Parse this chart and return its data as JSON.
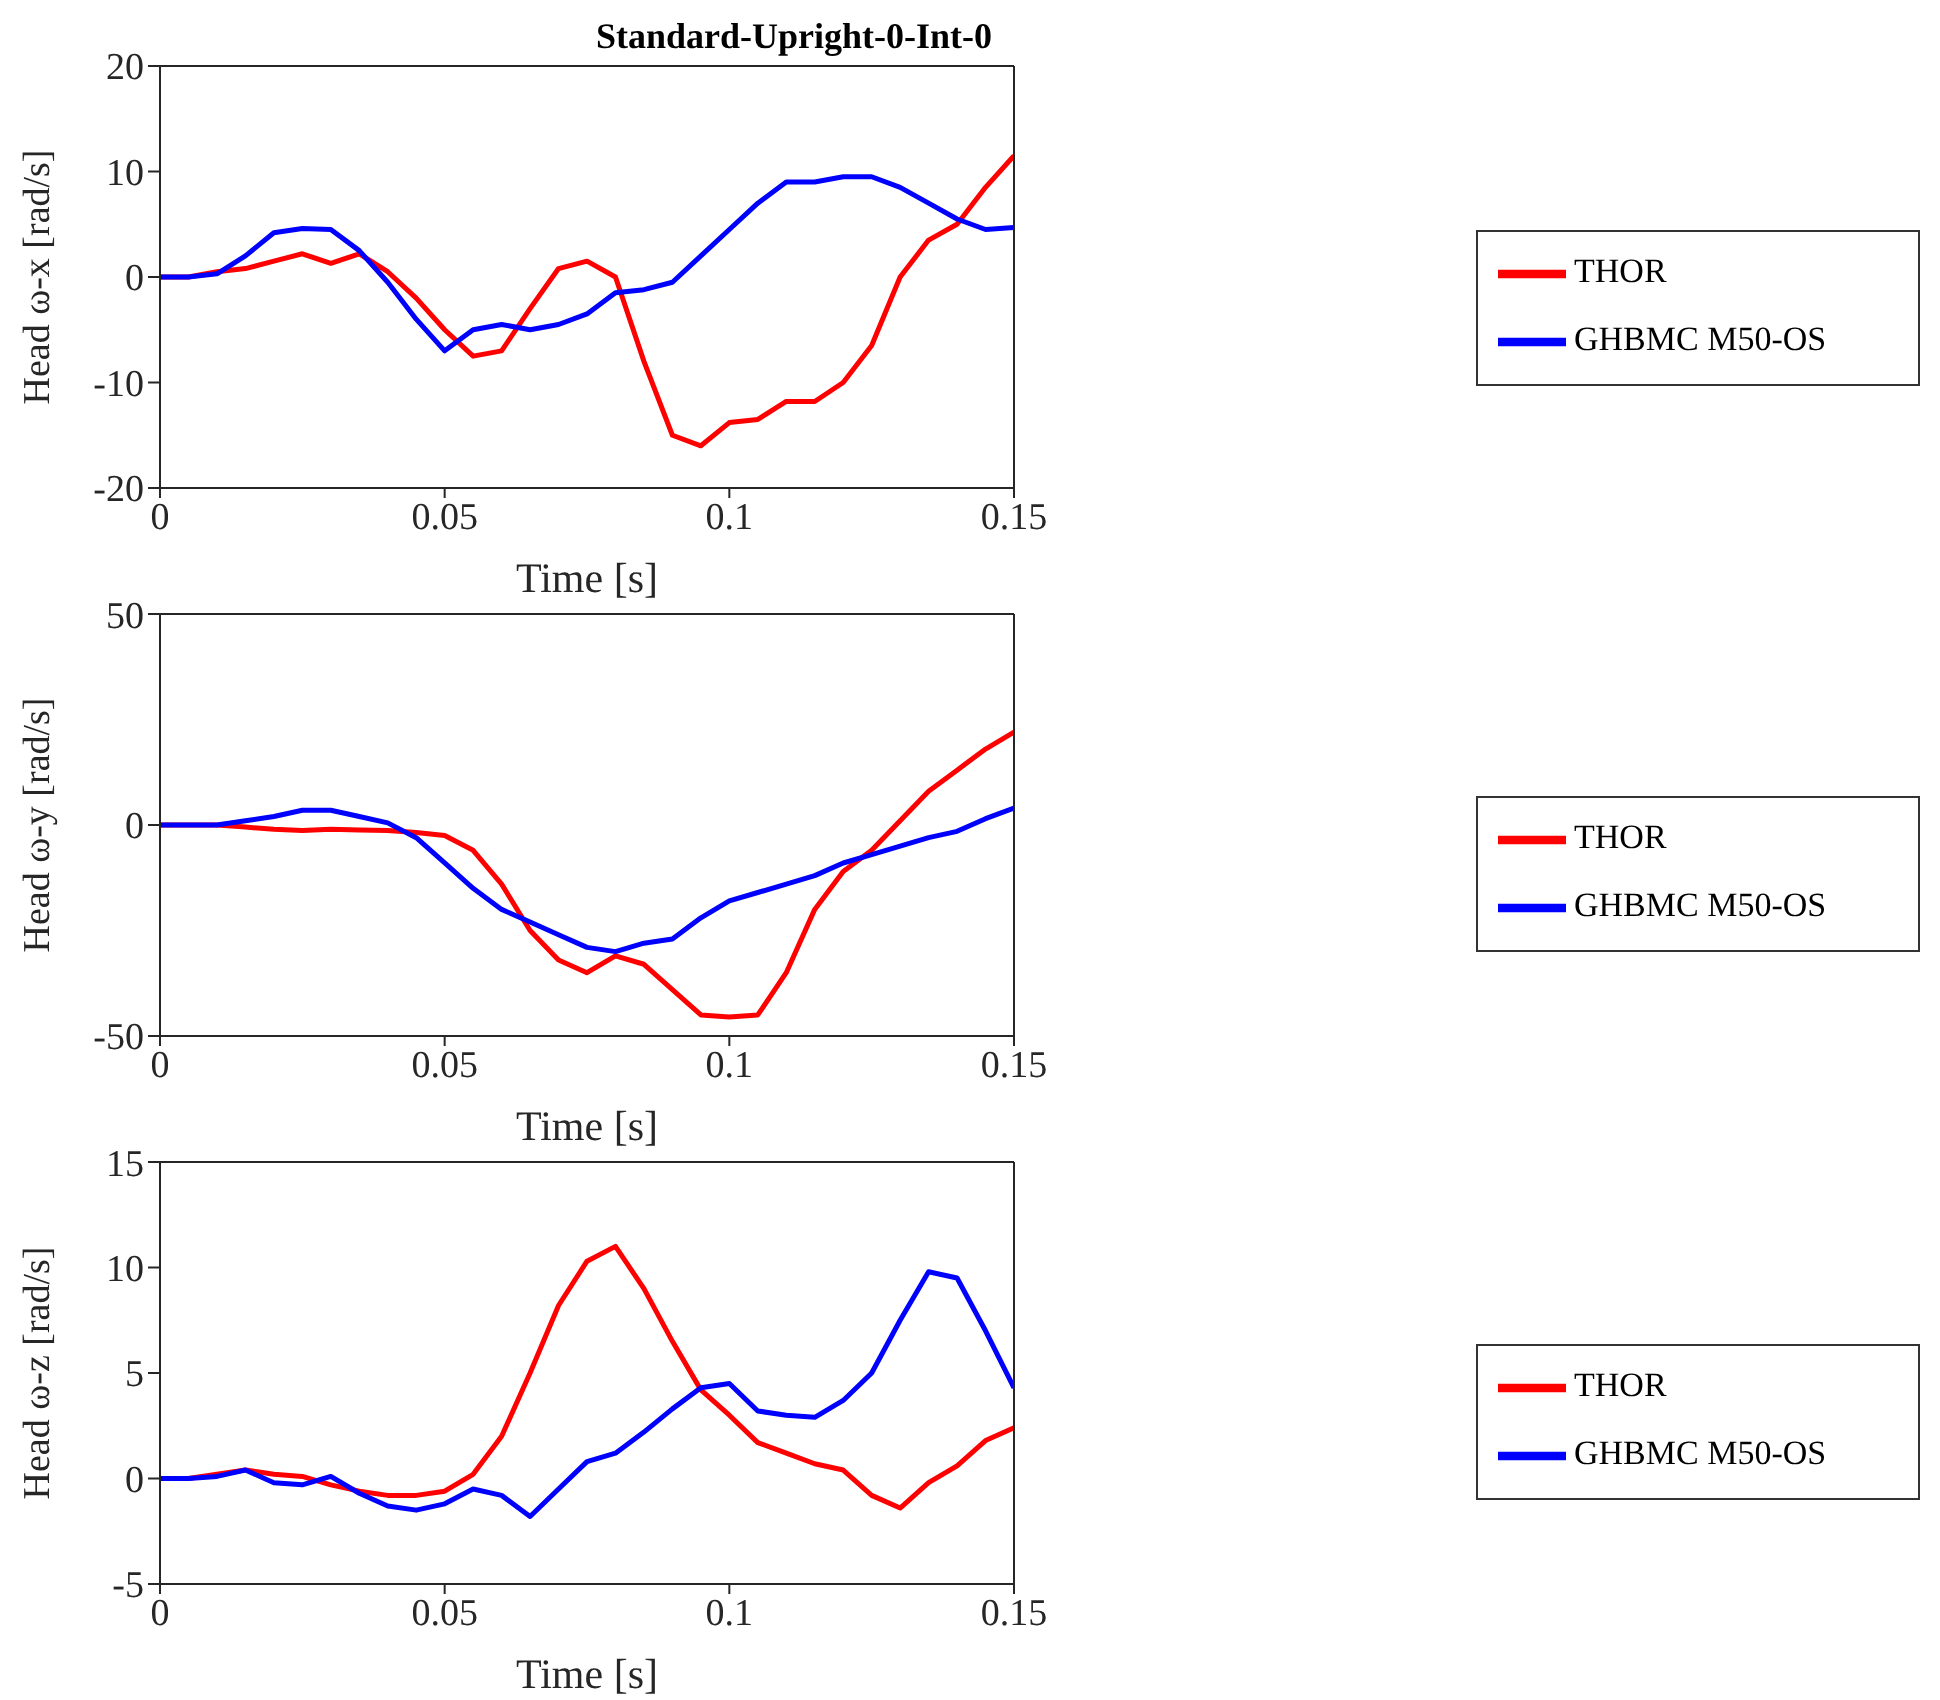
{
  "chart_data": [
    {
      "type": "line",
      "title": "Standard-Upright-0-Int-0",
      "xlabel": "Time [s]",
      "ylabel": "Head ω-x [rad/s]",
      "legend": "right",
      "line_style": "solid",
      "marker": "none",
      "x": [
        0,
        0.005,
        0.01,
        0.015,
        0.02,
        0.025,
        0.03,
        0.035,
        0.04,
        0.045,
        0.05,
        0.055,
        0.06,
        0.065,
        0.07,
        0.075,
        0.08,
        0.085,
        0.09,
        0.095,
        0.1,
        0.105,
        0.11,
        0.115,
        0.12,
        0.125,
        0.13,
        0.135,
        0.14,
        0.145,
        0.15
      ],
      "series": [
        {
          "name": "THOR",
          "color": "#ff0000",
          "values": [
            0,
            0,
            0.5,
            0.8,
            1.5,
            2.2,
            1.3,
            2.2,
            0.5,
            -2,
            -5,
            -7.5,
            -7,
            -3,
            0.8,
            1.5,
            0,
            -8,
            -15,
            -16,
            -13.8,
            -13.5,
            -11.8,
            -11.8,
            -10,
            -6.5,
            0,
            3.5,
            5,
            8.5,
            11.5
          ]
        },
        {
          "name": "GHBMC M50-OS",
          "color": "#0000ff",
          "values": [
            0,
            0,
            0.3,
            2,
            4.2,
            4.6,
            4.5,
            2.5,
            -0.5,
            -4,
            -7,
            -5,
            -4.5,
            -5,
            -4.5,
            -3.5,
            -1.5,
            -1.2,
            -0.5,
            2,
            4.5,
            7,
            9,
            9,
            9.5,
            9.5,
            8.5,
            7,
            5.5,
            4.5,
            4.7
          ]
        }
      ],
      "xlim": [
        0,
        0.15
      ],
      "xticks": [
        0,
        0.05,
        0.1,
        0.15
      ],
      "ylim": [
        -20,
        20
      ],
      "yticks": [
        -20,
        -10,
        0,
        10,
        20
      ]
    },
    {
      "type": "line",
      "xlabel": "Time [s]",
      "ylabel": "Head ω-y [rad/s]",
      "legend": "right",
      "line_style": "solid",
      "marker": "none",
      "x": [
        0,
        0.005,
        0.01,
        0.015,
        0.02,
        0.025,
        0.03,
        0.035,
        0.04,
        0.045,
        0.05,
        0.055,
        0.06,
        0.065,
        0.07,
        0.075,
        0.08,
        0.085,
        0.09,
        0.095,
        0.1,
        0.105,
        0.11,
        0.115,
        0.12,
        0.125,
        0.13,
        0.135,
        0.14,
        0.145,
        0.15
      ],
      "series": [
        {
          "name": "THOR",
          "color": "#ff0000",
          "values": [
            0,
            0,
            0,
            -0.5,
            -1,
            -1.3,
            -1,
            -1.2,
            -1.3,
            -1.8,
            -2.5,
            -6,
            -14,
            -25,
            -32,
            -35,
            -31,
            -33,
            -39,
            -45,
            -45.5,
            -45,
            -35,
            -20,
            -11,
            -6,
            1,
            8,
            13,
            18,
            22
          ]
        },
        {
          "name": "GHBMC M50-OS",
          "color": "#0000ff",
          "values": [
            0,
            0,
            0,
            1,
            2,
            3.5,
            3.5,
            2,
            0.5,
            -3,
            -9,
            -15,
            -20,
            -23,
            -26,
            -29,
            -30,
            -28,
            -27,
            -22,
            -18,
            -16,
            -14,
            -12,
            -9,
            -7,
            -5,
            -3,
            -1.5,
            1.5,
            4
          ]
        }
      ],
      "xlim": [
        0,
        0.15
      ],
      "xticks": [
        0,
        0.05,
        0.1,
        0.15
      ],
      "ylim": [
        -50,
        50
      ],
      "yticks": [
        -50,
        0,
        50
      ]
    },
    {
      "type": "line",
      "xlabel": "Time [s]",
      "ylabel": "Head ω-z [rad/s]",
      "legend": "right",
      "line_style": "solid",
      "marker": "none",
      "x": [
        0,
        0.005,
        0.01,
        0.015,
        0.02,
        0.025,
        0.03,
        0.035,
        0.04,
        0.045,
        0.05,
        0.055,
        0.06,
        0.065,
        0.07,
        0.075,
        0.08,
        0.085,
        0.09,
        0.095,
        0.1,
        0.105,
        0.11,
        0.115,
        0.12,
        0.125,
        0.13,
        0.135,
        0.14,
        0.145,
        0.15
      ],
      "series": [
        {
          "name": "THOR",
          "color": "#ff0000",
          "values": [
            0,
            0,
            0.2,
            0.4,
            0.2,
            0.1,
            -0.3,
            -0.6,
            -0.8,
            -0.8,
            -0.6,
            0.2,
            2,
            5,
            8.2,
            10.3,
            11,
            9,
            6.5,
            4.2,
            3,
            1.7,
            1.2,
            0.7,
            0.4,
            -0.8,
            -1.4,
            -0.2,
            0.6,
            1.8,
            2.4
          ]
        },
        {
          "name": "GHBMC M50-OS",
          "color": "#0000ff",
          "values": [
            0,
            0,
            0.1,
            0.4,
            -0.2,
            -0.3,
            0.1,
            -0.7,
            -1.3,
            -1.5,
            -1.2,
            -0.5,
            -0.8,
            -1.8,
            -0.5,
            0.8,
            1.2,
            2.2,
            3.3,
            4.3,
            4.5,
            3.2,
            3,
            2.9,
            3.7,
            5,
            7.5,
            9.8,
            9.5,
            7,
            4.3
          ]
        }
      ],
      "xlim": [
        0,
        0.15
      ],
      "xticks": [
        0,
        0.05,
        0.1,
        0.15
      ],
      "ylim": [
        -5,
        15
      ],
      "yticks": [
        -5,
        0,
        5,
        10,
        15
      ]
    }
  ]
}
